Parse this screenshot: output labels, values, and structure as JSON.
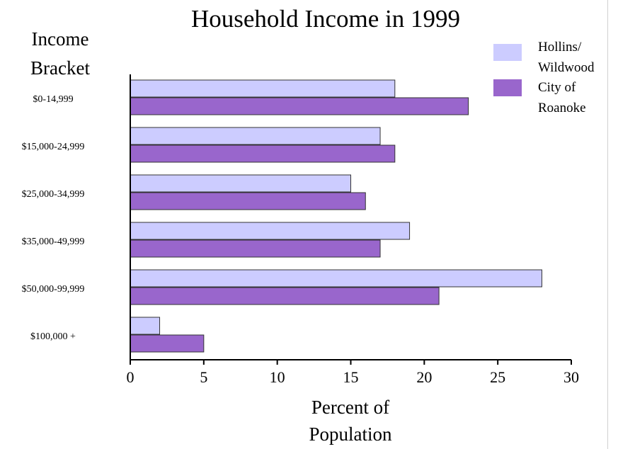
{
  "chart_data": {
    "type": "bar",
    "orientation": "horizontal",
    "title": "Household Income in 1999",
    "ylabel_lines": [
      "Income",
      "Bracket"
    ],
    "xlabel_lines": [
      "Percent of",
      "Population"
    ],
    "categories": [
      "$0-14,999",
      "$15,000-24,999",
      "$25,000-34,999",
      "$35,000-49,999",
      "$50,000-99,999",
      "$100,000 +"
    ],
    "series": [
      {
        "name_lines": [
          "Hollins/",
          "Wildwood"
        ],
        "color": "#ccccff",
        "values": [
          18,
          17,
          15,
          19,
          28,
          2
        ]
      },
      {
        "name_lines": [
          "City of",
          "Roanoke"
        ],
        "color": "#9966cc",
        "values": [
          23,
          18,
          16,
          17,
          21,
          5
        ]
      }
    ],
    "xlim": [
      0,
      30
    ],
    "xticks": [
      0,
      5,
      10,
      15,
      20,
      25,
      30
    ],
    "grid": false,
    "legend": "top-right"
  }
}
